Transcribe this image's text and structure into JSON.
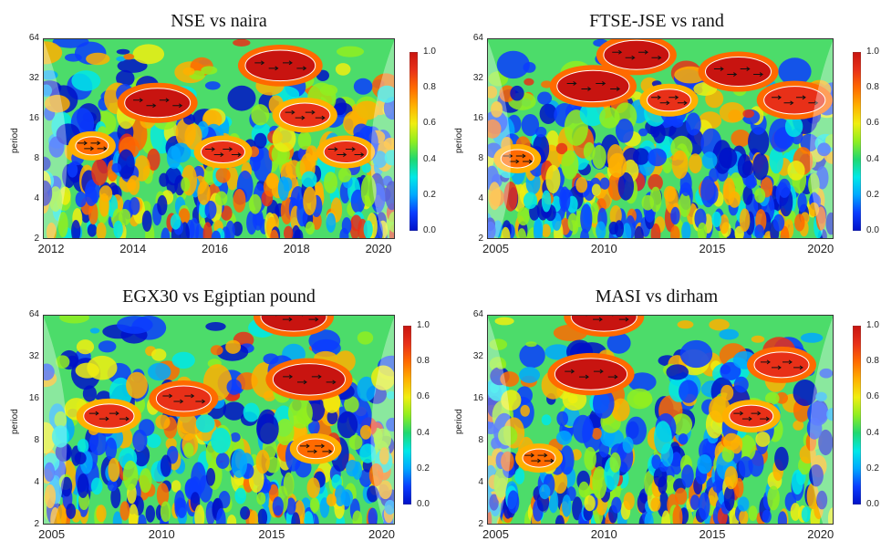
{
  "palette": [
    "#0010c8",
    "#0a3cff",
    "#00a8ff",
    "#00e8e8",
    "#20d870",
    "#90ee20",
    "#f0ee10",
    "#ffb000",
    "#ff6a00",
    "#e83018",
    "#c81410"
  ],
  "chart_data": [
    {
      "type": "heatmap",
      "title": "NSE vs naira",
      "ylabel": "period",
      "y_ticks": [
        "64",
        "32",
        "16",
        "8",
        "4",
        "2"
      ],
      "x_ticks": [
        "2012",
        "2014",
        "2016",
        "2018",
        "2020"
      ],
      "xlim": [
        2011.8,
        2020.4
      ],
      "ylim": [
        2,
        64
      ],
      "colorbar": {
        "ticks": [
          "1.0",
          "0.8",
          "0.6",
          "0.4",
          "0.2",
          "0.0"
        ],
        "range": [
          0,
          1
        ]
      },
      "hotspots": [
        {
          "x": 2014.6,
          "period": 21,
          "level": 0.95
        },
        {
          "x": 2017.6,
          "period": 40,
          "level": 0.97
        },
        {
          "x": 2018.2,
          "period": 17,
          "level": 0.88
        },
        {
          "x": 2016.2,
          "period": 9,
          "level": 0.85
        },
        {
          "x": 2013.0,
          "period": 10,
          "level": 0.8
        },
        {
          "x": 2019.2,
          "period": 9,
          "level": 0.85
        }
      ]
    },
    {
      "type": "heatmap",
      "title": "FTSE-JSE vs rand",
      "ylabel": "period",
      "y_ticks": [
        "64",
        "32",
        "16",
        "8",
        "4",
        "2"
      ],
      "x_ticks": [
        "2005",
        "2010",
        "2015",
        "2020"
      ],
      "xlim": [
        2004.6,
        2020.6
      ],
      "ylim": [
        2,
        64
      ],
      "colorbar": {
        "ticks": [
          "1.0",
          "0.8",
          "0.6",
          "0.4",
          "0.2",
          "0.0"
        ],
        "range": [
          0,
          1
        ]
      },
      "hotspots": [
        {
          "x": 2009.5,
          "period": 28,
          "level": 0.98
        },
        {
          "x": 2011.5,
          "period": 48,
          "level": 0.95
        },
        {
          "x": 2016.2,
          "period": 36,
          "level": 0.95
        },
        {
          "x": 2018.8,
          "period": 22,
          "level": 0.93
        },
        {
          "x": 2013.0,
          "period": 22,
          "level": 0.85
        },
        {
          "x": 2006.0,
          "period": 8,
          "level": 0.8
        }
      ]
    },
    {
      "type": "heatmap",
      "title": "EGX30 vs Egiptian pound",
      "ylabel": "period",
      "y_ticks": [
        "64",
        "32",
        "16",
        "8",
        "4",
        "2"
      ],
      "x_ticks": [
        "2005",
        "2010",
        "2015",
        "2020"
      ],
      "xlim": [
        2004.6,
        2020.6
      ],
      "ylim": [
        2,
        64
      ],
      "colorbar": {
        "ticks": [
          "1.0",
          "0.8",
          "0.6",
          "0.4",
          "0.2",
          "0.0"
        ],
        "range": [
          0,
          1
        ]
      },
      "hotspots": [
        {
          "x": 2016.7,
          "period": 22,
          "level": 0.98
        },
        {
          "x": 2011.0,
          "period": 16,
          "level": 0.9
        },
        {
          "x": 2007.6,
          "period": 12,
          "level": 0.88
        },
        {
          "x": 2016.0,
          "period": 62,
          "level": 0.95
        },
        {
          "x": 2017.0,
          "period": 7,
          "level": 0.82
        }
      ]
    },
    {
      "type": "heatmap",
      "title": "MASI vs dirham",
      "ylabel": "period",
      "y_ticks": [
        "64",
        "32",
        "16",
        "8",
        "4",
        "2"
      ],
      "x_ticks": [
        "2005",
        "2010",
        "2015",
        "2020"
      ],
      "xlim": [
        2004.6,
        2020.6
      ],
      "ylim": [
        2,
        64
      ],
      "colorbar": {
        "ticks": [
          "1.0",
          "0.8",
          "0.6",
          "0.4",
          "0.2",
          "0.0"
        ],
        "range": [
          0,
          1
        ]
      },
      "hotspots": [
        {
          "x": 2009.4,
          "period": 24,
          "level": 0.98
        },
        {
          "x": 2010.0,
          "period": 62,
          "level": 0.95
        },
        {
          "x": 2018.2,
          "period": 28,
          "level": 0.9
        },
        {
          "x": 2016.8,
          "period": 12,
          "level": 0.85
        },
        {
          "x": 2007.0,
          "period": 6,
          "level": 0.8
        }
      ]
    }
  ]
}
